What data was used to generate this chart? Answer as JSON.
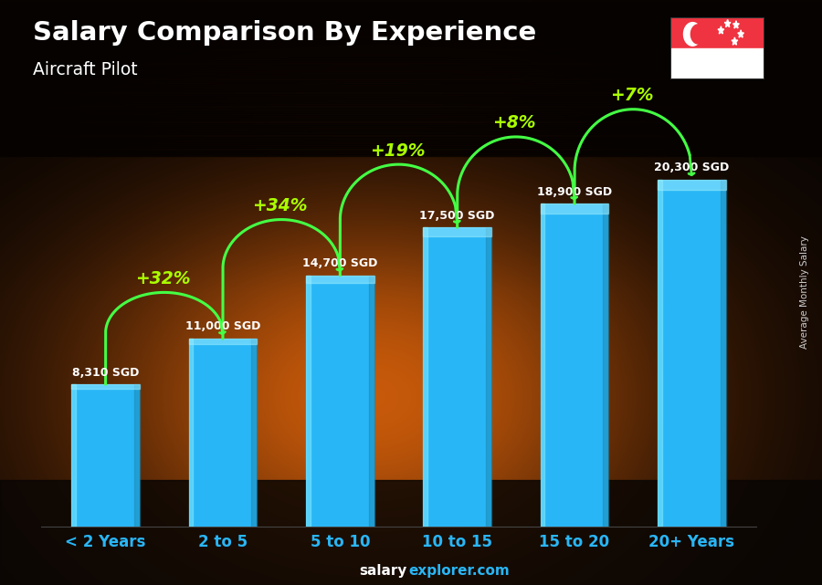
{
  "title": "Salary Comparison By Experience",
  "subtitle": "Aircraft Pilot",
  "categories": [
    "< 2 Years",
    "2 to 5",
    "5 to 10",
    "10 to 15",
    "15 to 20",
    "20+ Years"
  ],
  "values": [
    8310,
    11000,
    14700,
    17500,
    18900,
    20300
  ],
  "bar_color": "#29b6f6",
  "bar_edge_color": "#5ecfff",
  "value_labels": [
    "8,310 SGD",
    "11,000 SGD",
    "14,700 SGD",
    "17,500 SGD",
    "18,900 SGD",
    "20,300 SGD"
  ],
  "pct_labels": [
    "+32%",
    "+34%",
    "+19%",
    "+8%",
    "+7%"
  ],
  "title_color": "#ffffff",
  "subtitle_color": "#ffffff",
  "xlabel_color": "#29b6f6",
  "value_label_color": "#ffffff",
  "pct_color": "#aaff00",
  "arrow_color": "#44ff44",
  "footer_salary_color": "#ffffff",
  "footer_explorer_color": "#29b6f6",
  "ylabel_text": "Average Monthly Salary",
  "ylim": [
    0,
    25000
  ],
  "figsize": [
    9.0,
    6.41
  ],
  "dpi": 100
}
